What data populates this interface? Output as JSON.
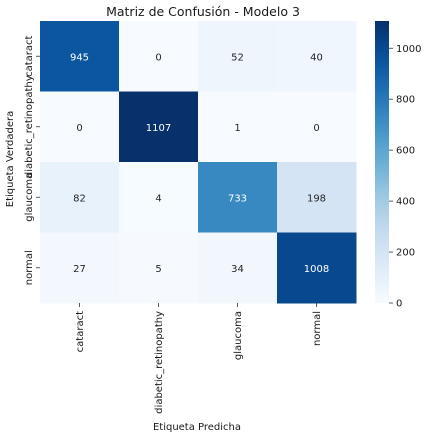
{
  "chart_data": {
    "type": "heatmap",
    "title": "Matriz de Confusión - Modelo 3",
    "xlabel": "Etiqueta Predicha",
    "ylabel": "Etiqueta Verdadera",
    "x_categories": [
      "cataract",
      "diabetic_retinopathy",
      "glaucoma",
      "normal"
    ],
    "y_categories": [
      "cataract",
      "diabetic_retinopathy",
      "glaucoma",
      "normal"
    ],
    "values": [
      [
        945,
        0,
        52,
        40
      ],
      [
        0,
        1107,
        1,
        0
      ],
      [
        82,
        4,
        733,
        198
      ],
      [
        27,
        5,
        34,
        1008
      ]
    ],
    "colormap": "Blues",
    "vmin": 0,
    "vmax": 1107,
    "colorbar_ticks": [
      0,
      200,
      400,
      600,
      800,
      1000
    ],
    "colorbar_tick_labels": [
      "0",
      "200",
      "400",
      "600",
      "800",
      "1000"
    ],
    "colors": {
      "low": "#f7fbff",
      "high": "#08306b"
    }
  }
}
